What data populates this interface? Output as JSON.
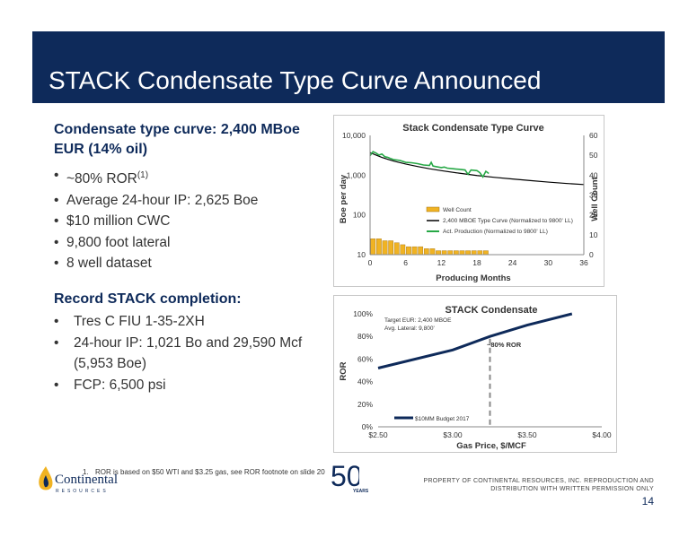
{
  "slide": {
    "title": "STACK Condensate Type Curve Announced",
    "page_number": "14"
  },
  "condensate": {
    "heading": "Condensate type curve: 2,400 MBoe EUR (14% oil)",
    "bullets": [
      "~80% ROR",
      "Average 24-hour IP: 2,625 Boe",
      "$10 million CWC",
      "9,800 foot lateral",
      "8 well dataset"
    ],
    "ror_superscript": "(1)"
  },
  "record": {
    "heading": "Record STACK completion:",
    "bullets": [
      "Tres C FIU 1-35-2XH",
      "24-hour IP: 1,021 Bo and 29,590 Mcf",
      "(5,953 Boe)",
      "FCP: 6,500 psi"
    ]
  },
  "footnote": {
    "number": "1.",
    "text": "ROR is based on $50 WTI and $3.25 gas, see ROR footnote on slide 20"
  },
  "footer": {
    "company": "Continental",
    "company_sub": "RESOURCES",
    "anniversary": "50",
    "anniversary_sub": "YEARS",
    "property_line1": "PROPERTY OF CONTINENTAL RESOURCES, INC. REPRODUCTION AND",
    "property_line2": "DISTRIBUTION WITH WRITTEN PERMISSION ONLY"
  },
  "colors": {
    "banner": "#0e2a5a",
    "bar": "#f0b323",
    "production": "#27a846",
    "curve": "#000000",
    "ror_line": "#0e2a5a"
  },
  "chart_data": [
    {
      "type": "line",
      "title": "Stack Condensate Type Curve",
      "xlabel": "Producing Months",
      "ylabel": "Boe per day",
      "y2label": "Well Count",
      "xlim": [
        0,
        36
      ],
      "ylim": [
        10,
        10000
      ],
      "yscale": "log",
      "y2lim": [
        0,
        60
      ],
      "xticks": [
        "0",
        "6",
        "12",
        "18",
        "24",
        "30",
        "36"
      ],
      "yticks": [
        "10",
        "100",
        "1,000",
        "10,000"
      ],
      "y2ticks": [
        "0",
        "10",
        "20",
        "30",
        "40",
        "50",
        "60"
      ],
      "legend": [
        "Well Count",
        "2,400 MBOE Type Curve (Normalized to 9800' LL)",
        "Act. Production (Normalized to 9800' LL)"
      ],
      "legend_position": "center-bottom",
      "well_count": {
        "x": [
          0.5,
          1.5,
          2.5,
          3.5,
          4.5,
          5.5,
          6.5,
          7.5,
          8.5,
          9.5,
          10.5,
          11.5,
          12.5,
          13.5,
          14.5,
          15.5,
          16.5,
          17.5,
          18.5,
          19.5
        ],
        "values": [
          8,
          8,
          7,
          7,
          6,
          5,
          4,
          4,
          4,
          3,
          3,
          2,
          2,
          2,
          2,
          2,
          2,
          2,
          2,
          2
        ]
      },
      "type_curve": {
        "x": [
          0,
          1,
          2,
          3,
          4,
          6,
          8,
          10,
          12,
          15,
          18,
          21,
          24,
          27,
          30,
          33,
          36
        ],
        "values": [
          3700,
          3200,
          2800,
          2500,
          2250,
          1900,
          1650,
          1450,
          1300,
          1120,
          980,
          880,
          800,
          730,
          670,
          620,
          580
        ]
      },
      "actual_production": {
        "x": [
          0,
          0.5,
          1,
          1.5,
          2,
          2.5,
          3,
          3.5,
          4,
          5,
          6,
          7,
          8,
          9,
          10,
          10.3,
          10.6,
          11,
          12,
          12.5,
          13,
          14,
          15,
          16,
          16.5,
          17,
          18,
          18.5,
          19,
          19.5,
          20
        ],
        "values": [
          3100,
          3900,
          3600,
          3200,
          3400,
          2900,
          2800,
          2600,
          2450,
          2350,
          2100,
          2050,
          1950,
          1800,
          1750,
          2100,
          1700,
          1650,
          1550,
          1600,
          1500,
          1450,
          1400,
          1350,
          1050,
          1350,
          1300,
          1150,
          900,
          1250,
          1100
        ]
      }
    },
    {
      "type": "line",
      "title": "STACK Condensate",
      "xlabel": "Gas Price, $/MCF",
      "ylabel": "ROR",
      "xlim": [
        2.5,
        4.0
      ],
      "ylim": [
        0,
        100
      ],
      "xticks": [
        "$2.50",
        "$3.00",
        "$3.50",
        "$4.00"
      ],
      "yticks": [
        "0%",
        "20%",
        "40%",
        "60%",
        "80%",
        "100%"
      ],
      "series": [
        {
          "name": "$10MM Budget 2017",
          "x": [
            2.5,
            3.0,
            3.25,
            3.5,
            3.8
          ],
          "values": [
            52,
            68,
            80,
            90,
            101
          ]
        }
      ],
      "annotations": [
        "Target EUR: 2,400 MBOE",
        "Avg. Lateral: 9,800'",
        "~80% ROR"
      ],
      "marker_x": 3.25,
      "legend_position": "bottom-left"
    }
  ]
}
